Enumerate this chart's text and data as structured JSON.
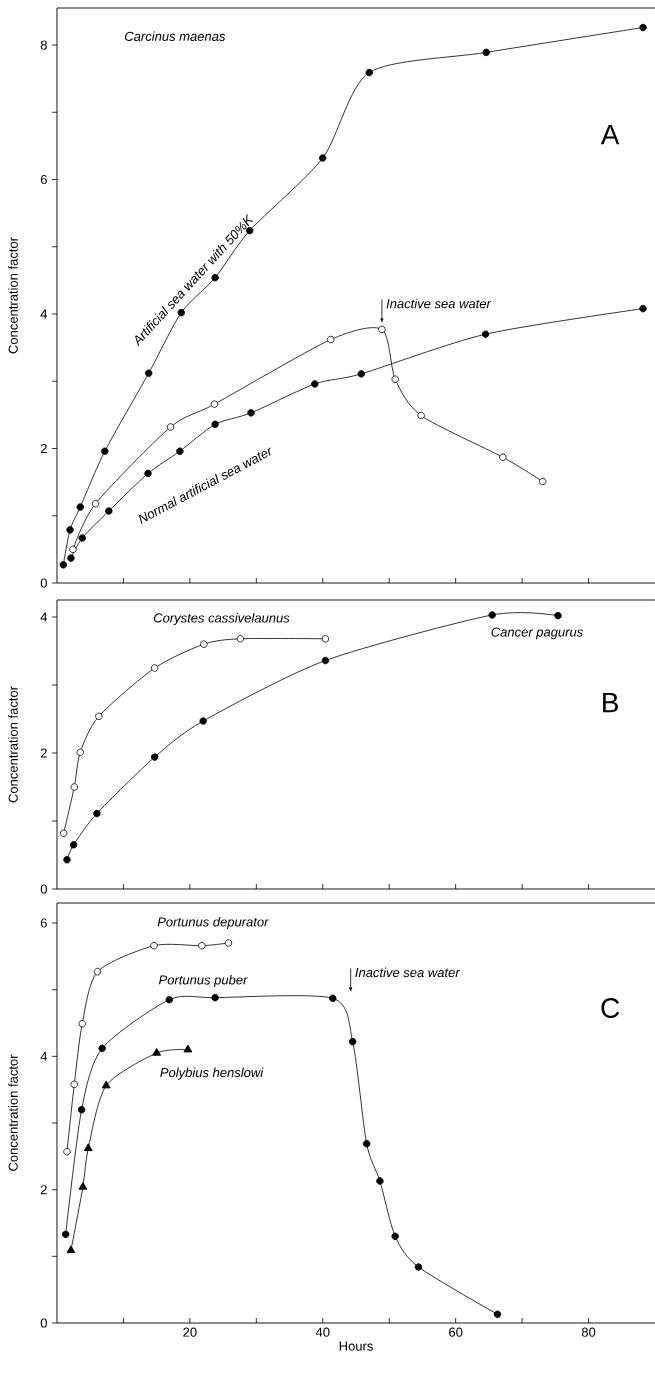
{
  "chart_data": [
    {
      "type": "line",
      "title": "Carcinus maenas",
      "ylabel": "Concentration factor",
      "xlim": [
        0,
        90
      ],
      "ylim": [
        0,
        8.55
      ],
      "xticks": [
        10,
        20,
        30,
        40,
        50,
        60,
        70,
        80
      ],
      "yticks": [
        0,
        {
          "value": 1,
          "label": null
        },
        2,
        {
          "value": 3,
          "label": null
        },
        4,
        {
          "value": 5,
          "label": null
        },
        6,
        {
          "value": 7,
          "label": null
        },
        8
      ],
      "tick_labels": "y",
      "annotations": [
        "A",
        {
          "text": "Inactive sea water",
          "x": 48.9,
          "y": 3.77
        }
      ],
      "series": [
        {
          "name": "Artificial sea water with 50%K",
          "color": "#000000",
          "marker": "circle",
          "x": [
            0.95,
            1.96,
            3.5,
            7.2,
            13.8,
            18.7,
            23.8,
            29.0,
            40.0,
            47.0,
            64.6,
            88.2
          ],
          "values": [
            0.27,
            0.79,
            1.13,
            1.96,
            3.12,
            4.02,
            4.54,
            5.24,
            6.32,
            7.59,
            7.89,
            8.26
          ]
        },
        {
          "name": "Normal artificial sea water",
          "color": "#000000",
          "marker": "circle",
          "x": [
            2.1,
            3.8,
            7.8,
            13.7,
            18.5,
            23.8,
            29.2,
            38.8,
            45.8,
            64.5,
            88.2
          ],
          "values": [
            0.37,
            0.67,
            1.07,
            1.63,
            1.96,
            2.36,
            2.53,
            2.96,
            3.11,
            3.7,
            4.08
          ]
        },
        {
          "color": "#000000",
          "colors": [
            "#ffffff",
            "#ffffff",
            "#ffffff",
            "#ffffff",
            "#ffffff",
            "#ffffff",
            "#ffffff",
            "#ffffff",
            "#ffffff",
            "#ffffff"
          ],
          "marker": "circle",
          "x": [
            2.4,
            5.8,
            17.1,
            23.7,
            41.2,
            48.9,
            50.9,
            54.8,
            67.1,
            73.1
          ],
          "values": [
            0.5,
            1.18,
            2.32,
            2.66,
            3.62,
            3.77,
            3.03,
            2.49,
            1.87,
            1.51
          ]
        }
      ]
    },
    {
      "type": "line",
      "ylabel": "Concentration factor",
      "xlim": [
        0,
        90
      ],
      "ylim": [
        0,
        4.25
      ],
      "xticks": [
        10,
        20,
        30,
        40,
        50,
        60,
        70,
        80
      ],
      "yticks": [
        0,
        {
          "value": 1,
          "label": null
        },
        2,
        {
          "value": 3,
          "label": null
        },
        4
      ],
      "tick_labels": "y",
      "annotations": [
        "B"
      ],
      "series": [
        {
          "name": "Corystes cassivelaunus",
          "color": "#000000",
          "colors": [
            "#ffffff",
            "#ffffff",
            "#ffffff",
            "#ffffff",
            "#ffffff",
            "#ffffff",
            "#ffffff",
            "#ffffff"
          ],
          "marker": "circle",
          "x": [
            1.0,
            2.6,
            3.5,
            6.3,
            14.7,
            22.1,
            27.6,
            40.4
          ],
          "values": [
            0.82,
            1.5,
            2.01,
            2.54,
            3.25,
            3.6,
            3.68,
            3.68
          ]
        },
        {
          "name": "Cancer pagurus",
          "color": "#000000",
          "marker": "circle",
          "x": [
            1.5,
            2.5,
            6.0,
            14.7,
            22.0,
            40.4,
            65.5,
            75.4
          ],
          "values": [
            0.43,
            0.65,
            1.11,
            1.94,
            2.47,
            3.36,
            4.03,
            4.02
          ]
        }
      ]
    },
    {
      "type": "line",
      "ylabel": "Concentration factor",
      "xlabel": "Hours",
      "xlim": [
        0,
        90
      ],
      "ylim": [
        0,
        6.3
      ],
      "xticks": [
        {
          "value": 10,
          "label": null
        },
        20,
        {
          "value": 30,
          "label": null
        },
        40,
        {
          "value": 50,
          "label": null
        },
        60,
        {
          "value": 70,
          "label": null
        },
        80
      ],
      "yticks": [
        0,
        {
          "value": 1,
          "label": null
        },
        2,
        {
          "value": 3,
          "label": null
        },
        4,
        {
          "value": 5,
          "label": null
        },
        6
      ],
      "annotations": [
        "C",
        "Inactive sea water"
      ],
      "series": [
        {
          "name": "Portunus depurator",
          "color": "#000000",
          "colors": [
            "#ffffff",
            "#ffffff",
            "#ffffff",
            "#ffffff",
            "#ffffff",
            "#ffffff",
            "#ffffff"
          ],
          "marker": "circle",
          "x": [
            1.5,
            2.6,
            3.8,
            6.1,
            14.6,
            21.8,
            25.8
          ],
          "values": [
            2.57,
            3.58,
            4.49,
            5.27,
            5.66,
            5.66,
            5.7
          ]
        },
        {
          "name": "Portunus puber",
          "color": "#000000",
          "marker": "circle",
          "x": [
            1.3,
            3.7,
            6.8,
            16.9,
            23.8,
            41.5,
            44.5,
            46.6,
            48.6,
            50.9,
            54.4,
            66.3
          ],
          "values": [
            1.33,
            3.2,
            4.12,
            4.85,
            4.88,
            4.87,
            4.22,
            2.69,
            2.13,
            1.3,
            0.84,
            0.13
          ]
        },
        {
          "name": "Polybius henslowi",
          "color": "#000000",
          "marker": "triangle",
          "x": [
            2.1,
            3.9,
            4.7,
            7.4,
            15.0,
            19.7
          ],
          "values": [
            1.09,
            2.04,
            2.62,
            3.56,
            4.05,
            4.1
          ]
        }
      ]
    }
  ]
}
